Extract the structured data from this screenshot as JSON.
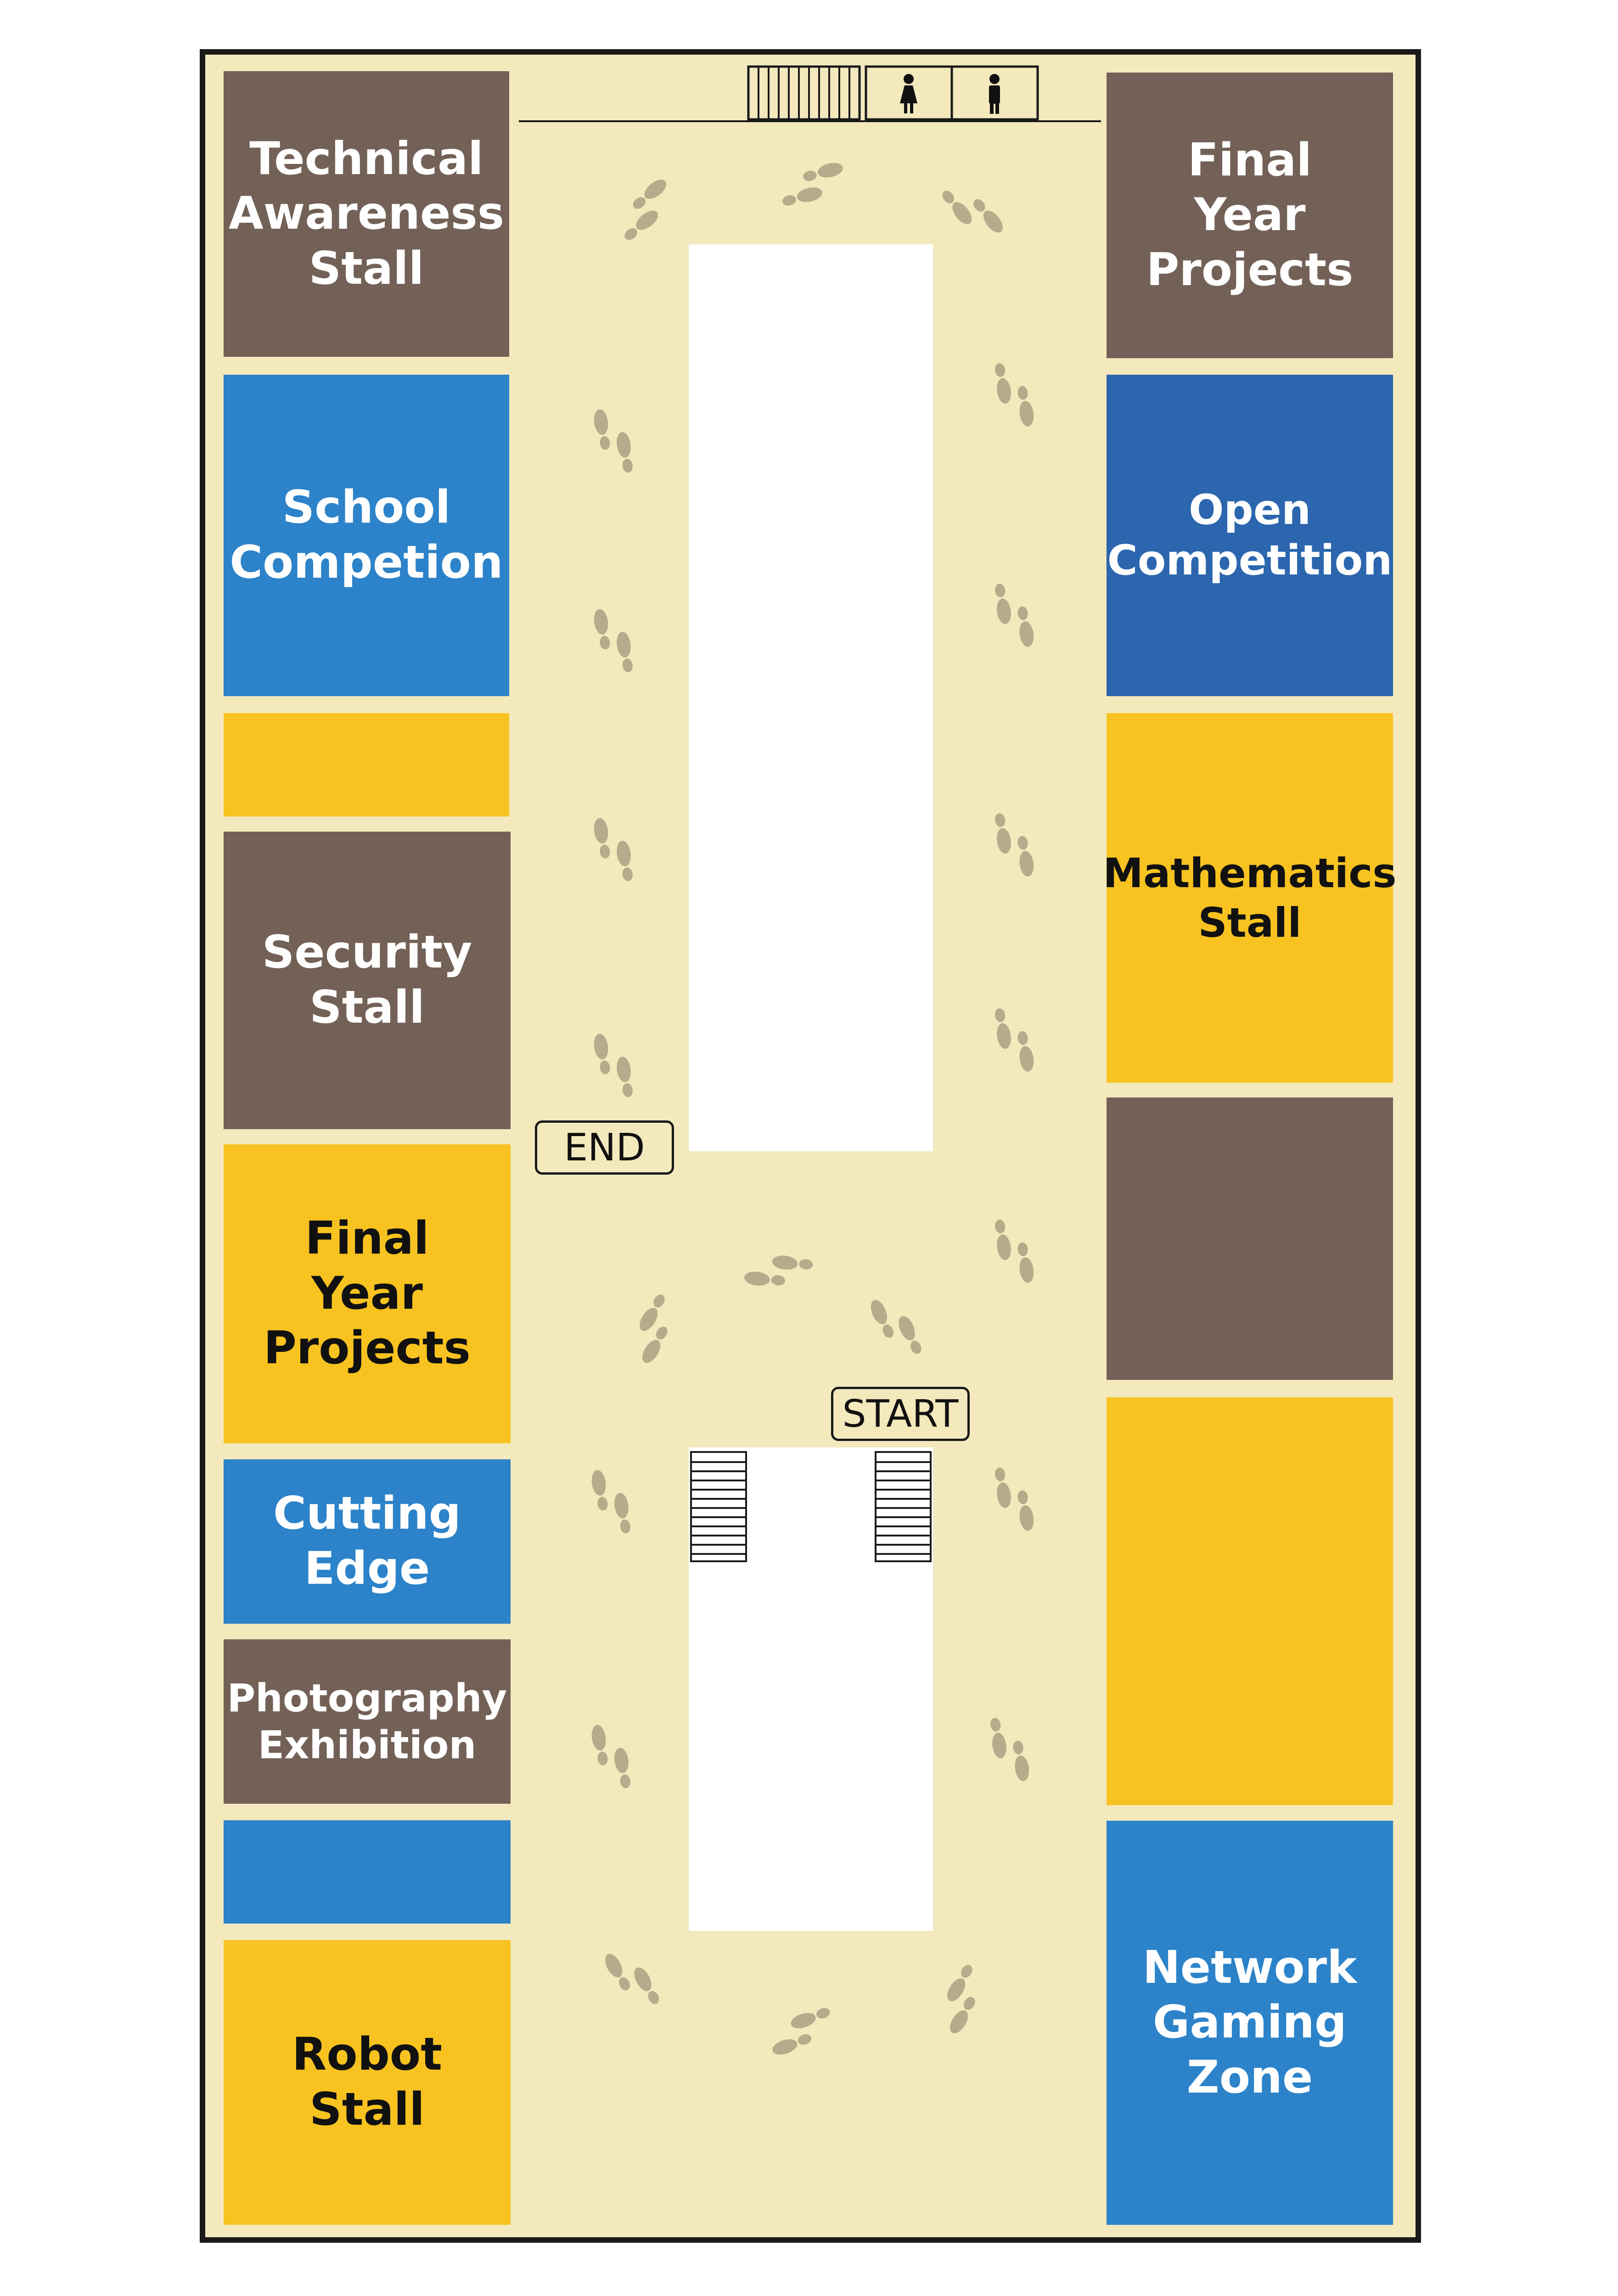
{
  "map": {
    "markers": {
      "start": "START",
      "end": "END"
    },
    "colors": {
      "floor": "#f3e9bd",
      "brown_stall": "#736157",
      "blue_stall": "#2c83c9",
      "dark_blue_stall": "#2b66ae",
      "yellow_stall": "#f8c320",
      "footprints": "#b6ab8a"
    },
    "facilities": [
      {
        "name": "stairs-icon"
      },
      {
        "name": "female-restroom-icon"
      },
      {
        "name": "male-restroom-icon"
      }
    ],
    "left_stalls": [
      {
        "label": "Technical\nAwareness\nStall",
        "color": "brown"
      },
      {
        "label": "School\nCompetion",
        "color": "blue"
      },
      {
        "label": "",
        "color": "yellow"
      },
      {
        "label": "Security\nStall",
        "color": "brown"
      },
      {
        "label": "Final\nYear\nProjects",
        "color": "yellow"
      },
      {
        "label": "Cutting\nEdge",
        "color": "blue"
      },
      {
        "label": "Photography\nExhibition",
        "color": "brown"
      },
      {
        "label": "",
        "color": "blue"
      },
      {
        "label": "Robot Stall",
        "color": "yellow"
      }
    ],
    "right_stalls": [
      {
        "label": "Final\nYear\nProjects",
        "color": "brown"
      },
      {
        "label": "Open\nCompetition",
        "color": "dark_blue"
      },
      {
        "label": "Mathematics\nStall",
        "color": "yellow"
      },
      {
        "label": "",
        "color": "brown"
      },
      {
        "label": "",
        "color": "yellow"
      },
      {
        "label": "Network\nGaming\nZone",
        "color": "blue"
      }
    ]
  }
}
